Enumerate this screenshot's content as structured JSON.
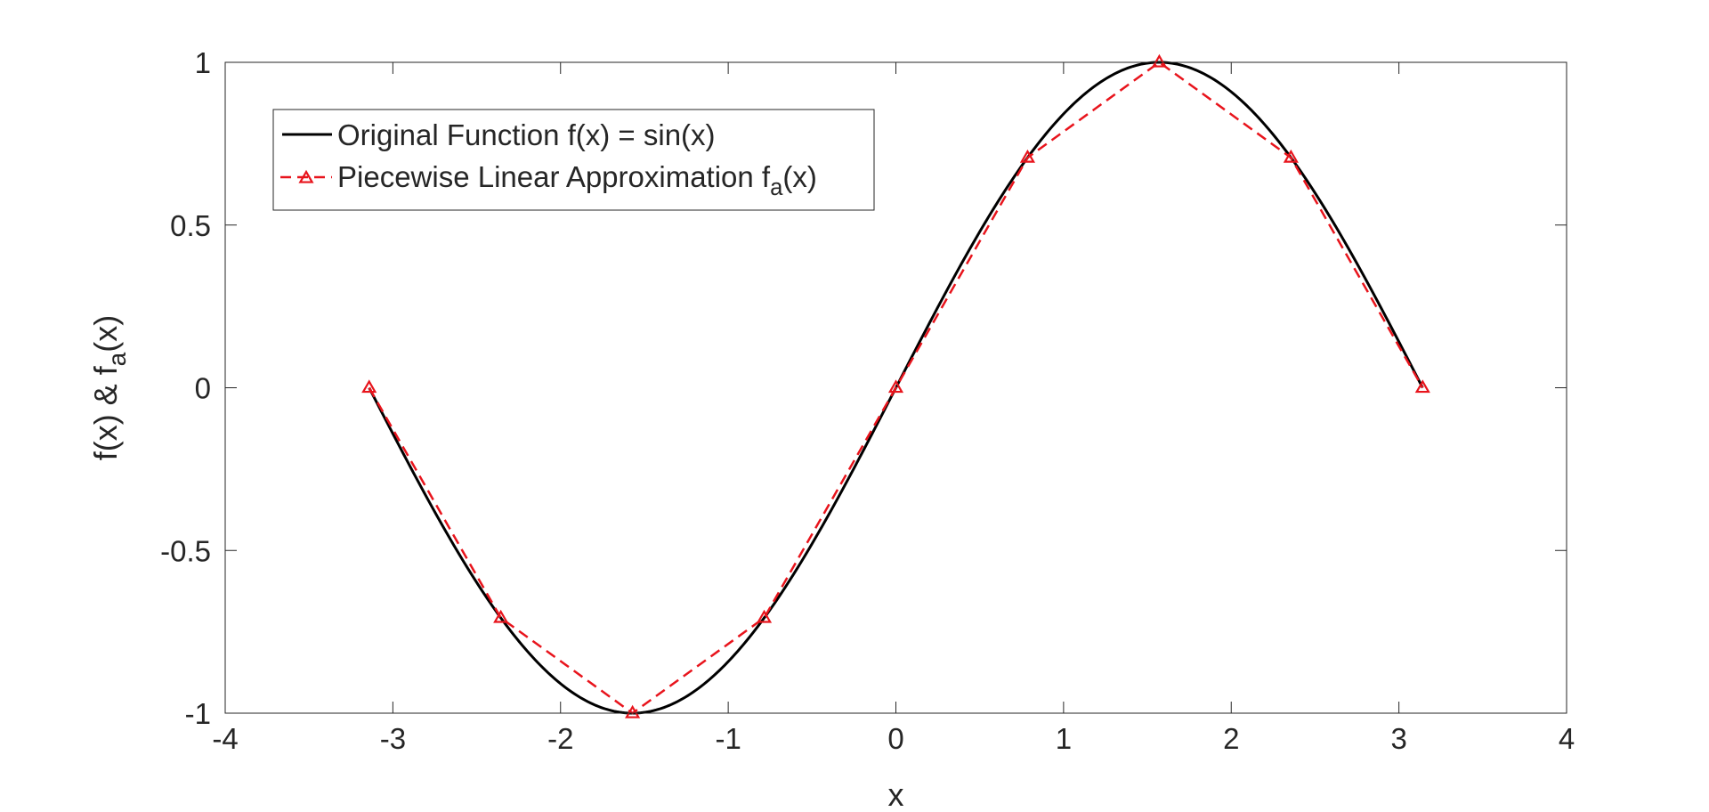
{
  "chart_data": {
    "type": "line",
    "xlabel": "x",
    "ylabel": {
      "main": "f(x) & f",
      "sub": "a",
      "tail": "(x)"
    },
    "xlim": [
      -4,
      4
    ],
    "ylim": [
      -1,
      1
    ],
    "xticks": [
      -4,
      -3,
      -2,
      -1,
      0,
      1,
      2,
      3,
      4
    ],
    "xtick_labels": [
      "-4",
      "-3",
      "-2",
      "-1",
      "0",
      "1",
      "2",
      "3",
      "4"
    ],
    "yticks": [
      -1,
      -0.5,
      0,
      0.5,
      1
    ],
    "ytick_labels": [
      "-1",
      "-0.5",
      "0",
      "0.5",
      "1"
    ],
    "grid": false,
    "legend_placement": "top-left",
    "series": [
      {
        "name": "Original Function f(x) = sin(x)",
        "function": "sin(x)",
        "x_range": [
          -3.1416,
          3.1416
        ],
        "style": "solid",
        "color": "#000000"
      },
      {
        "name": {
          "main": "Piecewise Linear Approximation f",
          "sub": "a",
          "tail": "(x)"
        },
        "style": "dashed",
        "marker": "triangle",
        "color": "#e8141c",
        "x": [
          -3.1416,
          -2.3562,
          -1.5708,
          -0.7854,
          0,
          0.7854,
          1.5708,
          2.3562,
          3.1416
        ],
        "y": [
          0,
          -0.7071,
          -1,
          -0.7071,
          0,
          0.7071,
          1,
          0.7071,
          0
        ]
      }
    ]
  }
}
